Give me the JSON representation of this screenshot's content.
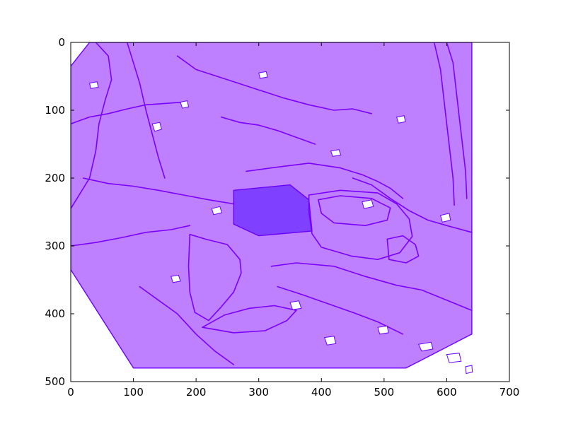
{
  "chart_data": {
    "type": "segmentation-overlay",
    "title": "",
    "xlabel": "",
    "ylabel": "",
    "xlim": [
      0,
      700
    ],
    "ylim": [
      500,
      0
    ],
    "y_inverted": true,
    "grid": false,
    "xticks": [
      0,
      100,
      200,
      300,
      400,
      500,
      600,
      700
    ],
    "yticks": [
      0,
      100,
      200,
      300,
      400,
      500
    ],
    "xtick_labels": [
      "0",
      "100",
      "200",
      "300",
      "400",
      "500",
      "600",
      "700"
    ],
    "ytick_labels": [
      "0",
      "100",
      "200",
      "300",
      "400",
      "500"
    ],
    "colors": {
      "region_fill": "#bf80ff",
      "highlight_fill": "#8040ff",
      "edge": "#6a00ff",
      "hole": "#ffffff"
    },
    "regions": [
      {
        "kind": "image-mask",
        "points": [
          [
            30,
            0
          ],
          [
            640,
            0
          ],
          [
            640,
            430
          ],
          [
            535,
            480
          ],
          [
            100,
            480
          ],
          [
            0,
            335
          ],
          [
            0,
            35
          ]
        ]
      },
      {
        "kind": "highlight-box",
        "points": [
          [
            260,
            218
          ],
          [
            350,
            210
          ],
          [
            380,
            232
          ],
          [
            385,
            278
          ],
          [
            300,
            285
          ],
          [
            260,
            268
          ]
        ]
      }
    ],
    "contours": [
      [
        [
          190,
          283
        ],
        [
          215,
          290
        ],
        [
          250,
          298
        ],
        [
          270,
          320
        ],
        [
          272,
          340
        ],
        [
          260,
          368
        ],
        [
          240,
          390
        ],
        [
          220,
          410
        ],
        [
          198,
          398
        ],
        [
          190,
          368
        ],
        [
          188,
          330
        ],
        [
          190,
          283
        ]
      ],
      [
        [
          210,
          420
        ],
        [
          260,
          428
        ],
        [
          310,
          425
        ],
        [
          345,
          410
        ],
        [
          360,
          395
        ],
        [
          325,
          388
        ],
        [
          285,
          392
        ],
        [
          245,
          402
        ],
        [
          210,
          420
        ]
      ],
      [
        [
          380,
          225
        ],
        [
          430,
          218
        ],
        [
          490,
          222
        ],
        [
          520,
          238
        ],
        [
          540,
          260
        ],
        [
          545,
          286
        ],
        [
          525,
          310
        ],
        [
          490,
          320
        ],
        [
          448,
          315
        ],
        [
          400,
          302
        ],
        [
          385,
          282
        ],
        [
          380,
          250
        ],
        [
          380,
          225
        ]
      ],
      [
        [
          395,
          232
        ],
        [
          430,
          226
        ],
        [
          480,
          230
        ],
        [
          510,
          244
        ],
        [
          505,
          262
        ],
        [
          470,
          270
        ],
        [
          420,
          266
        ],
        [
          400,
          252
        ],
        [
          395,
          232
        ]
      ],
      [
        [
          505,
          290
        ],
        [
          530,
          285
        ],
        [
          550,
          298
        ],
        [
          555,
          315
        ],
        [
          535,
          325
        ],
        [
          508,
          320
        ],
        [
          505,
          290
        ]
      ],
      [
        [
          320,
          330
        ],
        [
          360,
          325
        ],
        [
          420,
          330
        ],
        [
          470,
          345
        ],
        [
          520,
          358
        ],
        [
          560,
          365
        ],
        [
          600,
          380
        ],
        [
          640,
          395
        ]
      ],
      [
        [
          280,
          190
        ],
        [
          320,
          185
        ],
        [
          380,
          178
        ],
        [
          430,
          185
        ],
        [
          465,
          195
        ],
        [
          490,
          205
        ],
        [
          510,
          215
        ],
        [
          530,
          230
        ]
      ],
      [
        [
          40,
          0
        ],
        [
          60,
          20
        ],
        [
          65,
          55
        ],
        [
          55,
          85
        ],
        [
          45,
          120
        ],
        [
          40,
          160
        ],
        [
          30,
          200
        ],
        [
          10,
          230
        ],
        [
          0,
          245
        ]
      ],
      [
        [
          90,
          0
        ],
        [
          100,
          30
        ],
        [
          110,
          60
        ],
        [
          120,
          100
        ],
        [
          130,
          135
        ],
        [
          140,
          170
        ],
        [
          150,
          200
        ]
      ],
      [
        [
          170,
          20
        ],
        [
          200,
          40
        ],
        [
          250,
          55
        ],
        [
          300,
          70
        ],
        [
          340,
          82
        ],
        [
          380,
          92
        ],
        [
          420,
          100
        ],
        [
          450,
          98
        ],
        [
          480,
          105
        ]
      ],
      [
        [
          20,
          200
        ],
        [
          60,
          208
        ],
        [
          100,
          212
        ],
        [
          140,
          218
        ],
        [
          180,
          225
        ],
        [
          220,
          232
        ],
        [
          260,
          238
        ]
      ],
      [
        [
          0,
          300
        ],
        [
          40,
          295
        ],
        [
          80,
          288
        ],
        [
          120,
          280
        ],
        [
          160,
          276
        ],
        [
          190,
          270
        ]
      ],
      [
        [
          450,
          200
        ],
        [
          480,
          210
        ],
        [
          510,
          230
        ],
        [
          540,
          248
        ],
        [
          570,
          262
        ],
        [
          600,
          270
        ],
        [
          640,
          280
        ]
      ],
      [
        [
          580,
          0
        ],
        [
          590,
          40
        ],
        [
          595,
          80
        ],
        [
          600,
          120
        ],
        [
          605,
          160
        ],
        [
          610,
          200
        ],
        [
          612,
          240
        ]
      ],
      [
        [
          600,
          0
        ],
        [
          610,
          30
        ],
        [
          615,
          70
        ],
        [
          620,
          110
        ],
        [
          625,
          150
        ],
        [
          630,
          190
        ],
        [
          632,
          230
        ]
      ],
      [
        [
          110,
          360
        ],
        [
          140,
          380
        ],
        [
          170,
          400
        ],
        [
          200,
          430
        ],
        [
          230,
          455
        ],
        [
          260,
          475
        ]
      ],
      [
        [
          330,
          360
        ],
        [
          370,
          372
        ],
        [
          410,
          385
        ],
        [
          450,
          398
        ],
        [
          490,
          412
        ],
        [
          530,
          430
        ]
      ],
      [
        [
          0,
          120
        ],
        [
          30,
          110
        ],
        [
          60,
          105
        ],
        [
          90,
          98
        ],
        [
          120,
          92
        ],
        [
          150,
          90
        ],
        [
          180,
          88
        ]
      ],
      [
        [
          240,
          110
        ],
        [
          270,
          118
        ],
        [
          300,
          122
        ],
        [
          330,
          130
        ],
        [
          360,
          140
        ],
        [
          390,
          150
        ]
      ]
    ],
    "holes": [
      [
        [
          130,
          120
        ],
        [
          142,
          118
        ],
        [
          145,
          128
        ],
        [
          134,
          131
        ]
      ],
      [
        [
          175,
          88
        ],
        [
          186,
          86
        ],
        [
          188,
          95
        ],
        [
          178,
          97
        ]
      ],
      [
        [
          415,
          160
        ],
        [
          428,
          158
        ],
        [
          431,
          166
        ],
        [
          418,
          168
        ]
      ],
      [
        [
          520,
          110
        ],
        [
          532,
          108
        ],
        [
          534,
          117
        ],
        [
          523,
          119
        ]
      ],
      [
        [
          465,
          235
        ],
        [
          480,
          232
        ],
        [
          483,
          242
        ],
        [
          468,
          245
        ]
      ],
      [
        [
          225,
          245
        ],
        [
          238,
          242
        ],
        [
          241,
          251
        ],
        [
          228,
          254
        ]
      ],
      [
        [
          160,
          345
        ],
        [
          172,
          343
        ],
        [
          175,
          352
        ],
        [
          163,
          354
        ]
      ],
      [
        [
          350,
          383
        ],
        [
          364,
          381
        ],
        [
          368,
          392
        ],
        [
          354,
          394
        ]
      ],
      [
        [
          405,
          435
        ],
        [
          420,
          433
        ],
        [
          423,
          444
        ],
        [
          409,
          446
        ]
      ],
      [
        [
          590,
          255
        ],
        [
          604,
          252
        ],
        [
          606,
          262
        ],
        [
          593,
          265
        ]
      ],
      [
        [
          30,
          60
        ],
        [
          42,
          58
        ],
        [
          44,
          66
        ],
        [
          32,
          68
        ]
      ],
      [
        [
          300,
          45
        ],
        [
          312,
          43
        ],
        [
          314,
          51
        ],
        [
          302,
          53
        ]
      ],
      [
        [
          555,
          445
        ],
        [
          575,
          442
        ],
        [
          578,
          452
        ],
        [
          560,
          455
        ]
      ],
      [
        [
          600,
          460
        ],
        [
          620,
          458
        ],
        [
          623,
          470
        ],
        [
          604,
          472
        ]
      ],
      [
        [
          630,
          478
        ],
        [
          640,
          476
        ],
        [
          641,
          486
        ],
        [
          631,
          488
        ]
      ],
      [
        [
          490,
          420
        ],
        [
          505,
          418
        ],
        [
          507,
          428
        ],
        [
          493,
          430
        ]
      ]
    ]
  }
}
